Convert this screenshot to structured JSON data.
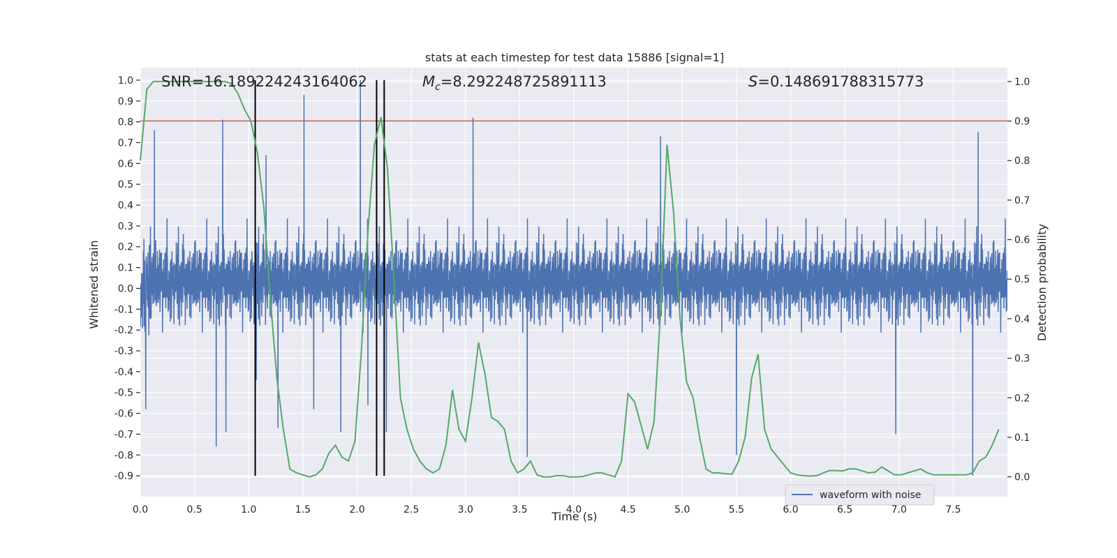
{
  "chart_data": {
    "type": "line",
    "title": "stats at each timestep for test data 15886 [signal=1]",
    "xlabel": "Time (s)",
    "ylabel_left": "Whitened strain",
    "ylabel_right": "Detection probability",
    "xlim": [
      0.0,
      8.0
    ],
    "ylim_left": [
      -1.0,
      1.06
    ],
    "ylim_right": [
      -0.05,
      1.035
    ],
    "x_ticks": [
      "0.0",
      "0.5",
      "1.0",
      "1.5",
      "2.0",
      "2.5",
      "3.0",
      "3.5",
      "4.0",
      "4.5",
      "5.0",
      "5.5",
      "6.0",
      "6.5",
      "7.0",
      "7.5"
    ],
    "y_ticks_left": [
      "-0.9",
      "-0.8",
      "-0.7",
      "-0.6",
      "-0.5",
      "-0.4",
      "-0.3",
      "-0.2",
      "-0.1",
      "0.0",
      "0.1",
      "0.2",
      "0.3",
      "0.4",
      "0.5",
      "0.6",
      "0.7",
      "0.8",
      "0.9",
      "1.0"
    ],
    "y_ticks_right": [
      "0.0",
      "0.1",
      "0.2",
      "0.3",
      "0.4",
      "0.5",
      "0.6",
      "0.7",
      "0.8",
      "0.9",
      "1.0"
    ],
    "grid": true,
    "legend_position": "bottom-right",
    "annotations": {
      "snr_prefix": "SNR=",
      "snr_value": "16.189224243164062",
      "mc_symbol": "M",
      "mc_sub": "c",
      "mc_value": "=8.292248725891113",
      "s_symbol": "S",
      "s_value": "=0.148691788315773"
    },
    "threshold_line": {
      "y": 0.9,
      "axis": "right",
      "color": "#c44e52"
    },
    "vertical_lines": {
      "x": [
        1.06,
        2.18,
        2.25
      ],
      "y_range_left": [
        -0.9,
        1.0
      ],
      "color": "#000000"
    },
    "waveform": {
      "name": "waveform with noise",
      "color": "#4c72b0",
      "typical_amplitude": 0.25,
      "peaks": [
        {
          "x": 0.05,
          "y": -0.58
        },
        {
          "x": 0.13,
          "y": 0.76
        },
        {
          "x": 0.7,
          "y": -0.76
        },
        {
          "x": 0.76,
          "y": 0.81
        },
        {
          "x": 0.79,
          "y": -0.69
        },
        {
          "x": 1.07,
          "y": -0.44
        },
        {
          "x": 1.16,
          "y": 0.64
        },
        {
          "x": 1.27,
          "y": -0.67
        },
        {
          "x": 1.51,
          "y": 0.93
        },
        {
          "x": 1.6,
          "y": -0.58
        },
        {
          "x": 1.85,
          "y": -0.69
        },
        {
          "x": 2.03,
          "y": 1.0
        },
        {
          "x": 2.1,
          "y": -0.56
        },
        {
          "x": 2.18,
          "y": 0.98
        },
        {
          "x": 2.27,
          "y": -0.69
        },
        {
          "x": 3.07,
          "y": 0.82
        },
        {
          "x": 3.57,
          "y": -0.81
        },
        {
          "x": 4.8,
          "y": 0.73
        },
        {
          "x": 5.5,
          "y": -0.8
        },
        {
          "x": 6.97,
          "y": -0.7
        },
        {
          "x": 7.68,
          "y": -0.9
        },
        {
          "x": 7.73,
          "y": 0.75
        }
      ]
    },
    "detection_probability": {
      "color": "#55a868",
      "x": [
        0.0,
        0.06,
        0.12,
        0.18,
        0.24,
        0.3,
        0.36,
        0.42,
        0.48,
        0.54,
        0.6,
        0.66,
        0.72,
        0.78,
        0.84,
        0.9,
        0.96,
        1.02,
        1.08,
        1.14,
        1.2,
        1.26,
        1.32,
        1.38,
        1.44,
        1.5,
        1.56,
        1.62,
        1.68,
        1.74,
        1.8,
        1.86,
        1.92,
        1.98,
        2.04,
        2.1,
        2.16,
        2.22,
        2.28,
        2.34,
        2.4,
        2.46,
        2.52,
        2.58,
        2.64,
        2.7,
        2.76,
        2.82,
        2.88,
        2.94,
        3.0,
        3.06,
        3.12,
        3.18,
        3.24,
        3.3,
        3.36,
        3.42,
        3.48,
        3.54,
        3.6,
        3.66,
        3.72,
        3.78,
        3.84,
        3.9,
        3.96,
        4.02,
        4.08,
        4.14,
        4.2,
        4.26,
        4.32,
        4.38,
        4.44,
        4.5,
        4.56,
        4.62,
        4.68,
        4.74,
        4.8,
        4.86,
        4.92,
        4.98,
        5.04,
        5.1,
        5.16,
        5.22,
        5.28,
        5.34,
        5.4,
        5.46,
        5.52,
        5.58,
        5.64,
        5.7,
        5.76,
        5.82,
        5.88,
        5.94,
        6.0,
        6.06,
        6.12,
        6.18,
        6.24,
        6.3,
        6.36,
        6.42,
        6.48,
        6.54,
        6.6,
        6.66,
        6.72,
        6.78,
        6.84,
        6.9,
        6.96,
        7.02,
        7.08,
        7.14,
        7.2,
        7.26,
        7.32,
        7.38,
        7.44,
        7.5,
        7.56,
        7.62,
        7.68,
        7.74,
        7.8,
        7.86,
        7.92
      ],
      "y": [
        0.8,
        0.98,
        1.0,
        1.0,
        1.0,
        1.0,
        1.0,
        1.0,
        1.0,
        1.0,
        1.0,
        1.0,
        1.0,
        1.0,
        0.995,
        0.97,
        0.93,
        0.9,
        0.82,
        0.68,
        0.45,
        0.25,
        0.12,
        0.02,
        0.01,
        0.005,
        0.0,
        0.005,
        0.02,
        0.06,
        0.08,
        0.05,
        0.04,
        0.09,
        0.32,
        0.62,
        0.84,
        0.91,
        0.78,
        0.5,
        0.2,
        0.12,
        0.07,
        0.04,
        0.02,
        0.01,
        0.02,
        0.08,
        0.22,
        0.12,
        0.09,
        0.2,
        0.34,
        0.26,
        0.15,
        0.14,
        0.12,
        0.04,
        0.01,
        0.02,
        0.04,
        0.005,
        0.0,
        0.0,
        0.003,
        0.003,
        0.0,
        0.0,
        0.001,
        0.005,
        0.01,
        0.01,
        0.005,
        0.0,
        0.04,
        0.21,
        0.19,
        0.13,
        0.07,
        0.14,
        0.42,
        0.84,
        0.67,
        0.4,
        0.24,
        0.2,
        0.1,
        0.02,
        0.01,
        0.01,
        0.008,
        0.007,
        0.04,
        0.1,
        0.25,
        0.31,
        0.12,
        0.07,
        0.05,
        0.03,
        0.01,
        0.005,
        0.003,
        0.002,
        0.003,
        0.01,
        0.016,
        0.016,
        0.015,
        0.02,
        0.02,
        0.015,
        0.01,
        0.012,
        0.025,
        0.015,
        0.005,
        0.005,
        0.01,
        0.015,
        0.02,
        0.01,
        0.005,
        0.005,
        0.005,
        0.005,
        0.005,
        0.005,
        0.01,
        0.04,
        0.05,
        0.08,
        0.12
      ]
    }
  }
}
